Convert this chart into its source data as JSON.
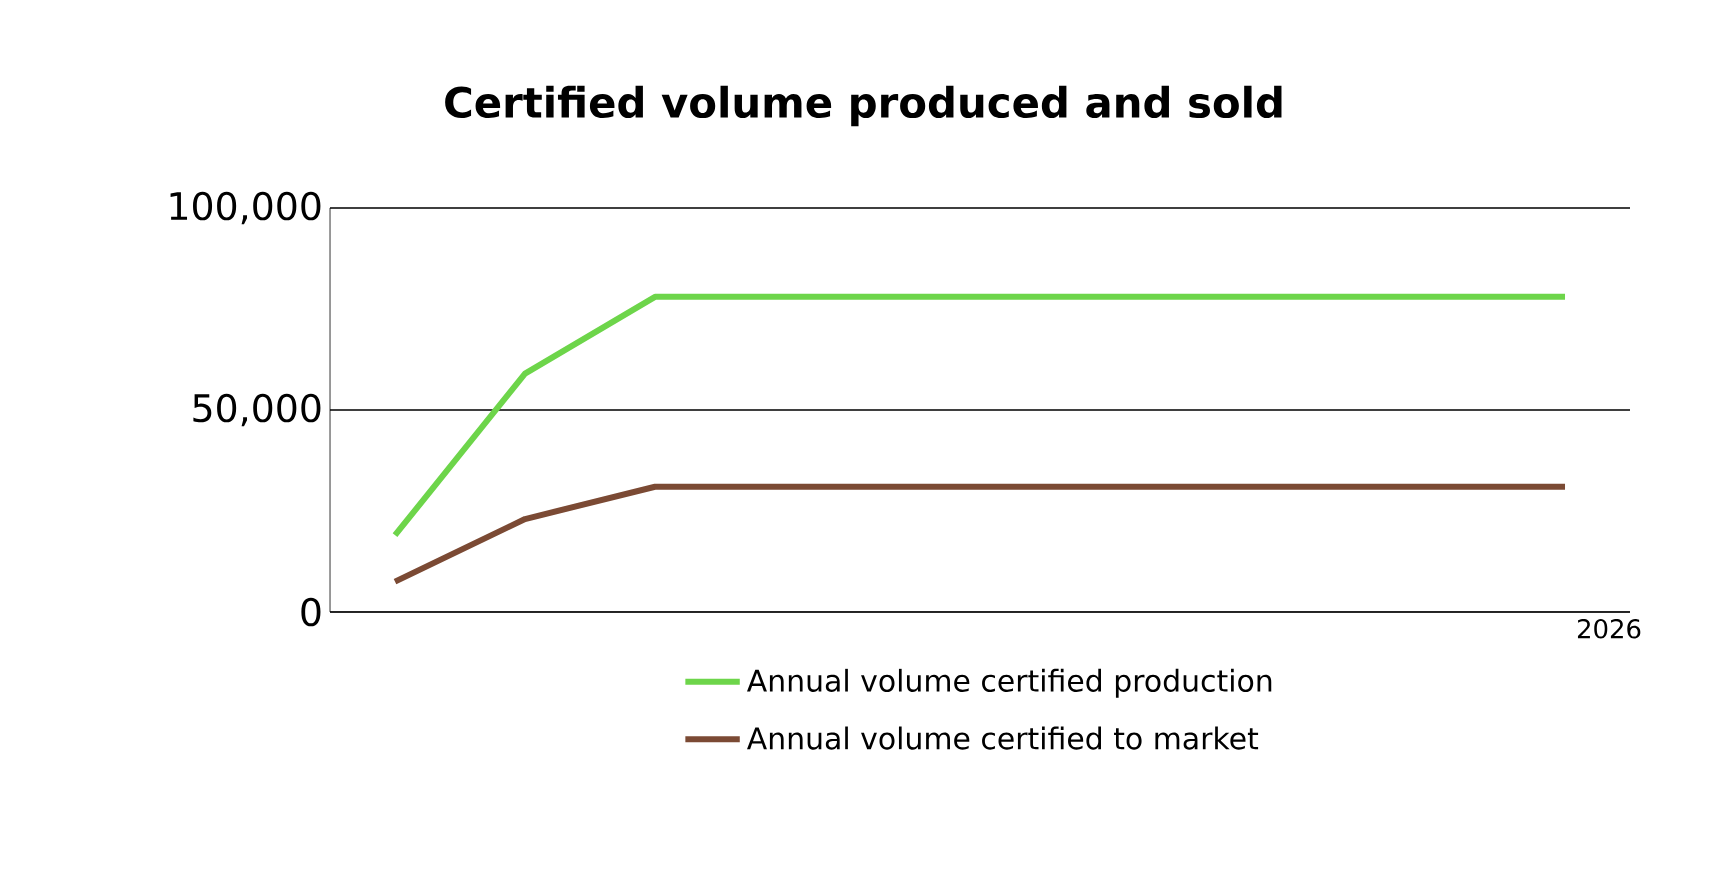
{
  "chart_data": {
    "type": "line",
    "title": "Certified volume produced and sold",
    "categories": [
      null,
      null,
      null,
      null,
      null,
      null,
      null,
      null,
      null,
      "2026"
    ],
    "series": [
      {
        "name": "Annual volume certified production",
        "color": "#6dd54a",
        "values": [
          19000,
          59000,
          78000,
          78000,
          78000,
          78000,
          78000,
          78000,
          78000,
          78000
        ]
      },
      {
        "name": "Annual volume certified to market",
        "color": "#7b4a34",
        "values": [
          7500,
          23000,
          31000,
          31000,
          31000,
          31000,
          31000,
          31000,
          31000,
          31000
        ]
      }
    ],
    "ylim": [
      0,
      100000
    ],
    "yticks": [
      0,
      {
        "value": 50000,
        "label": "50,000"
      },
      {
        "value": 100000,
        "label": "100,000"
      }
    ],
    "grid": "y",
    "legend": "bottom",
    "marker": "none",
    "line_style": "solid"
  }
}
